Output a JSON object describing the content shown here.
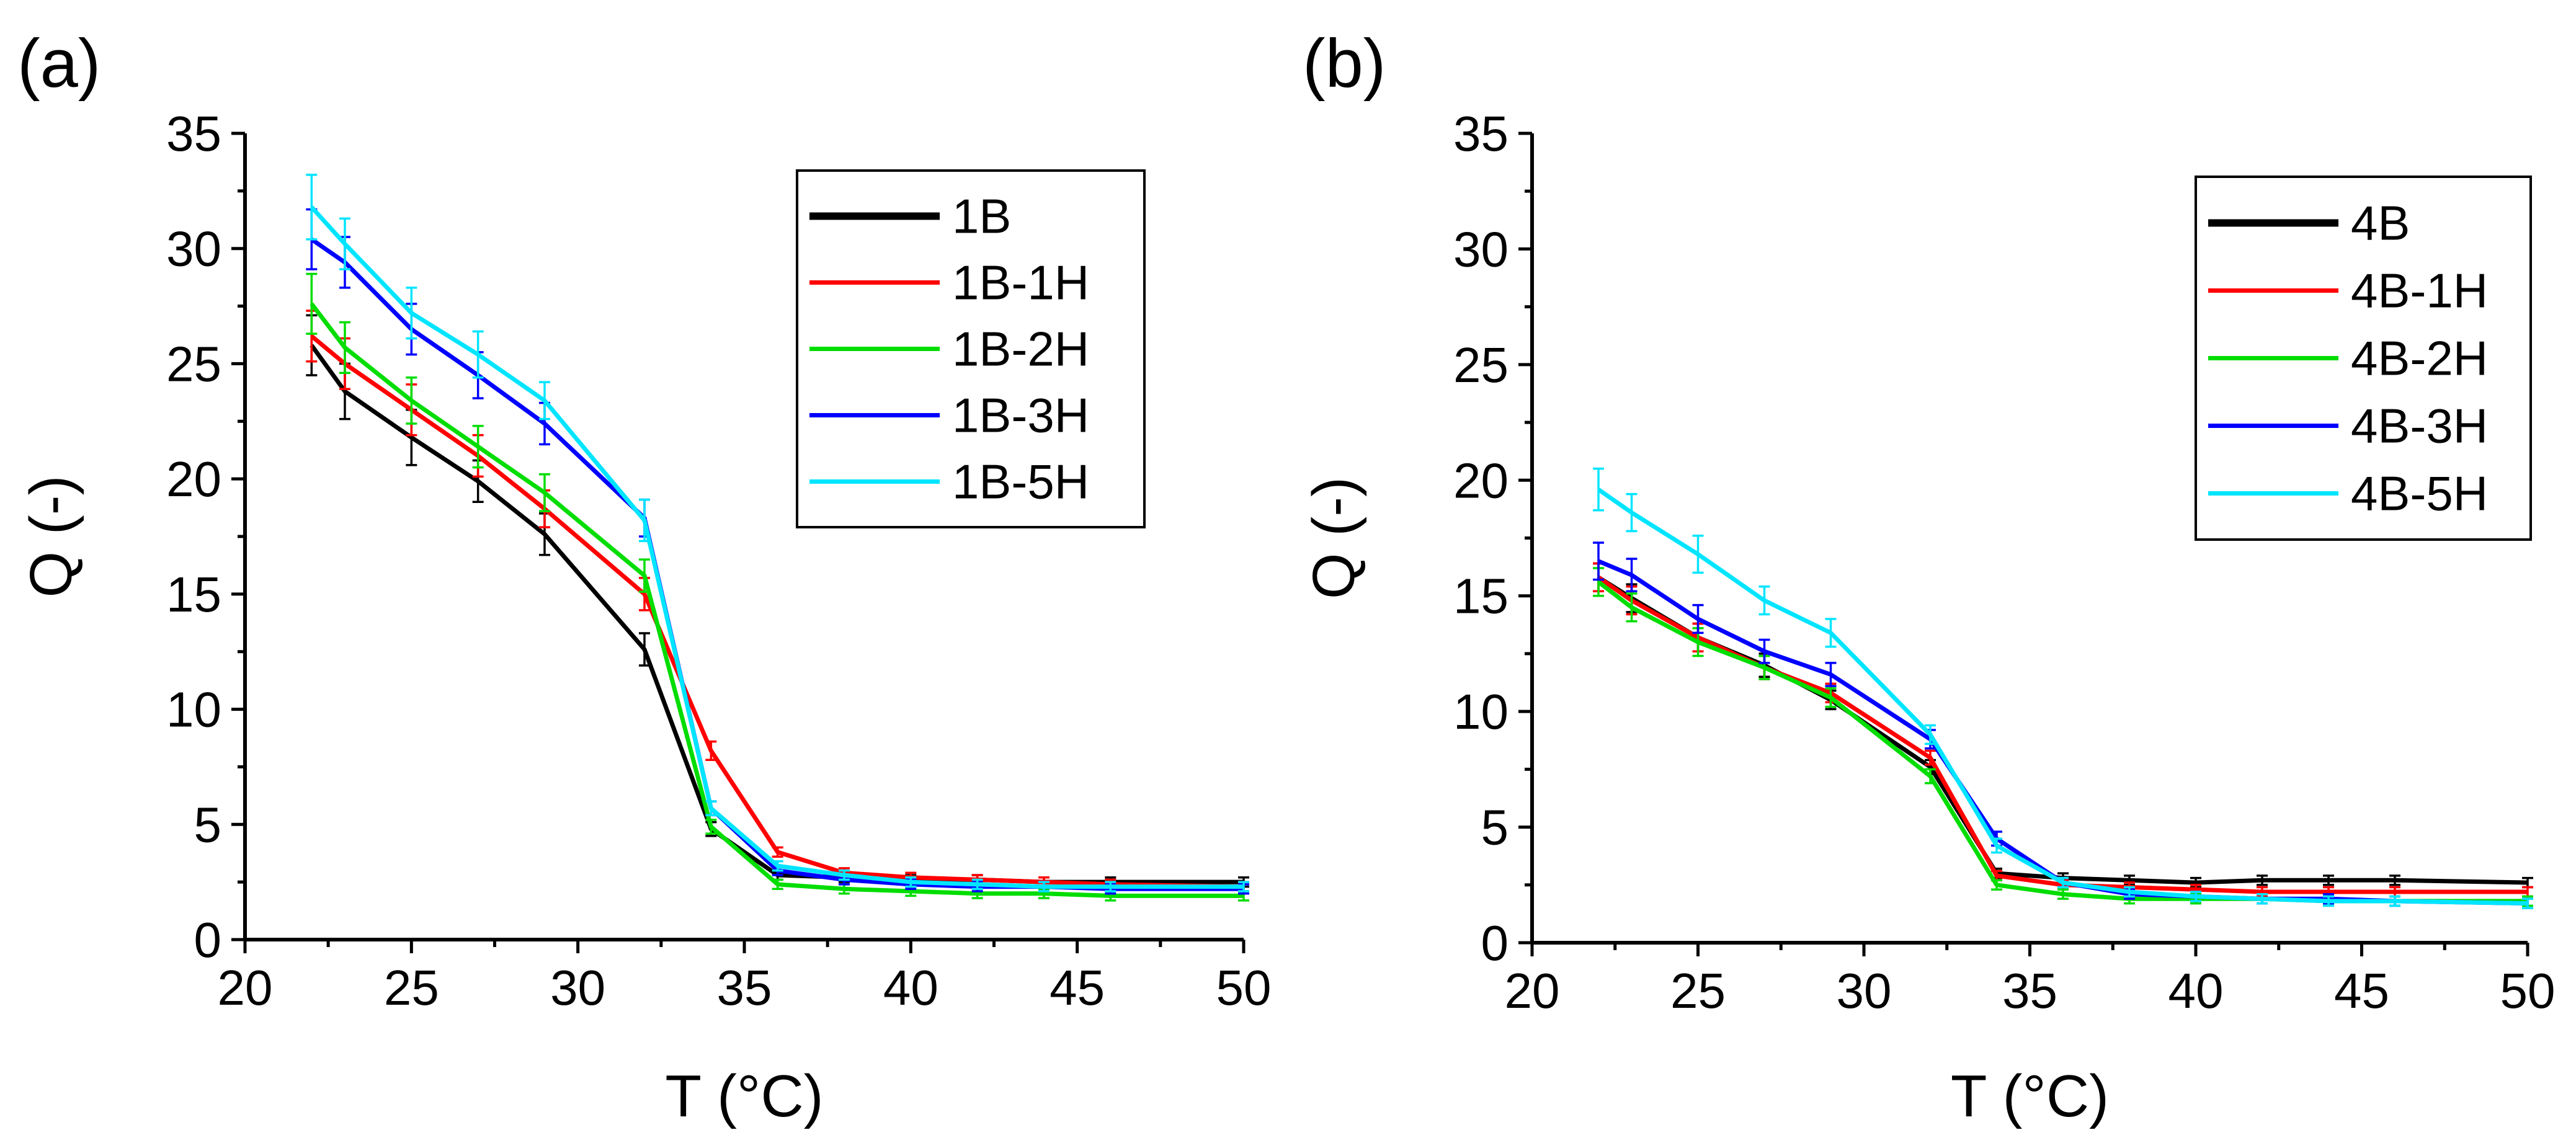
{
  "chart_data": [
    {
      "panel_label": "(a)",
      "type": "line",
      "xlabel": "T (°C)",
      "ylabel": "Q (-)",
      "xlim": [
        20,
        50
      ],
      "ylim": [
        0,
        35
      ],
      "xticks": [
        20,
        25,
        30,
        35,
        40,
        45,
        50
      ],
      "yticks": [
        0,
        5,
        10,
        15,
        20,
        25,
        30,
        35
      ],
      "legend_position": "top-right",
      "x": [
        22,
        23,
        25,
        27,
        29,
        32,
        34,
        36,
        38,
        40,
        42,
        44,
        46,
        50
      ],
      "series": [
        {
          "name": "1B",
          "color": "#000000",
          "values": [
            25.8,
            23.8,
            21.8,
            19.9,
            17.6,
            12.6,
            4.8,
            2.8,
            2.7,
            2.6,
            2.6,
            2.5,
            2.5,
            2.5
          ],
          "errors": [
            1.3,
            1.2,
            1.2,
            0.9,
            0.9,
            0.7,
            0.3,
            0.2,
            0.2,
            0.2,
            0.2,
            0.2,
            0.2,
            0.2
          ]
        },
        {
          "name": "1B-1H",
          "color": "#ff0000",
          "values": [
            26.2,
            25.0,
            23.0,
            21.0,
            18.7,
            15.0,
            8.2,
            3.8,
            2.9,
            2.7,
            2.6,
            2.5,
            2.4,
            2.3
          ],
          "errors": [
            1.1,
            1.1,
            1.1,
            0.9,
            0.8,
            0.7,
            0.4,
            0.2,
            0.2,
            0.2,
            0.2,
            0.2,
            0.2,
            0.2
          ]
        },
        {
          "name": "1B-2H",
          "color": "#00dd00",
          "values": [
            27.6,
            25.7,
            23.4,
            21.4,
            19.4,
            15.8,
            4.9,
            2.4,
            2.2,
            2.1,
            2.0,
            2.0,
            1.9,
            1.9
          ],
          "errors": [
            1.3,
            1.1,
            1.0,
            0.9,
            0.8,
            0.7,
            0.3,
            0.2,
            0.2,
            0.2,
            0.2,
            0.2,
            0.2,
            0.2
          ]
        },
        {
          "name": "1B-3H",
          "color": "#0000ff",
          "values": [
            30.4,
            29.4,
            26.5,
            24.5,
            22.4,
            18.3,
            5.7,
            3.0,
            2.6,
            2.4,
            2.3,
            2.3,
            2.2,
            2.2
          ],
          "errors": [
            1.3,
            1.1,
            1.1,
            1.0,
            0.9,
            0.8,
            0.3,
            0.2,
            0.2,
            0.2,
            0.2,
            0.2,
            0.2,
            0.2
          ]
        },
        {
          "name": "1B-5H",
          "color": "#00e5ff",
          "values": [
            31.8,
            30.2,
            27.2,
            25.4,
            23.4,
            18.2,
            5.7,
            3.2,
            2.8,
            2.5,
            2.4,
            2.3,
            2.3,
            2.3
          ],
          "errors": [
            1.4,
            1.1,
            1.1,
            1.0,
            0.8,
            0.9,
            0.3,
            0.2,
            0.2,
            0.2,
            0.2,
            0.2,
            0.2,
            0.2
          ]
        }
      ]
    },
    {
      "panel_label": "(b)",
      "type": "line",
      "xlabel": "T (°C)",
      "ylabel": "Q (-)",
      "xlim": [
        20,
        50
      ],
      "ylim": [
        0,
        35
      ],
      "xticks": [
        20,
        25,
        30,
        35,
        40,
        45,
        50
      ],
      "yticks": [
        0,
        5,
        10,
        15,
        20,
        25,
        30,
        35
      ],
      "legend_position": "top-right",
      "x": [
        22,
        23,
        25,
        27,
        29,
        32,
        34,
        36,
        38,
        40,
        42,
        44,
        46,
        50
      ],
      "series": [
        {
          "name": "4B",
          "color": "#000000",
          "values": [
            15.8,
            14.9,
            13.2,
            12.0,
            10.5,
            7.6,
            3.0,
            2.8,
            2.7,
            2.6,
            2.7,
            2.7,
            2.7,
            2.6
          ],
          "errors": [
            0.6,
            0.6,
            0.6,
            0.5,
            0.4,
            0.3,
            0.2,
            0.2,
            0.2,
            0.2,
            0.2,
            0.2,
            0.2,
            0.2
          ]
        },
        {
          "name": "4B-1H",
          "color": "#ff0000",
          "values": [
            15.8,
            14.8,
            13.2,
            11.9,
            10.8,
            8.0,
            2.9,
            2.5,
            2.4,
            2.3,
            2.2,
            2.2,
            2.2,
            2.2
          ],
          "errors": [
            0.6,
            0.6,
            0.6,
            0.5,
            0.4,
            0.3,
            0.2,
            0.2,
            0.2,
            0.2,
            0.2,
            0.2,
            0.2,
            0.2
          ]
        },
        {
          "name": "4B-2H",
          "color": "#00dd00",
          "values": [
            15.6,
            14.5,
            13.0,
            11.9,
            10.6,
            7.2,
            2.5,
            2.1,
            1.9,
            1.9,
            1.9,
            1.8,
            1.8,
            1.8
          ],
          "errors": [
            0.6,
            0.6,
            0.6,
            0.5,
            0.4,
            0.3,
            0.2,
            0.2,
            0.2,
            0.2,
            0.2,
            0.2,
            0.2,
            0.2
          ]
        },
        {
          "name": "4B-3H",
          "color": "#0000ff",
          "values": [
            16.5,
            15.9,
            14.0,
            12.6,
            11.6,
            8.8,
            4.5,
            2.6,
            2.1,
            2.0,
            1.9,
            1.9,
            1.8,
            1.7
          ],
          "errors": [
            0.8,
            0.7,
            0.6,
            0.5,
            0.5,
            0.4,
            0.3,
            0.2,
            0.2,
            0.2,
            0.2,
            0.2,
            0.2,
            0.2
          ]
        },
        {
          "name": "4B-5H",
          "color": "#00e5ff",
          "values": [
            19.6,
            18.6,
            16.8,
            14.8,
            13.4,
            9.0,
            4.2,
            2.6,
            2.2,
            2.0,
            1.9,
            1.8,
            1.8,
            1.7
          ],
          "errors": [
            0.9,
            0.8,
            0.8,
            0.6,
            0.6,
            0.4,
            0.3,
            0.2,
            0.2,
            0.2,
            0.2,
            0.2,
            0.2,
            0.2
          ]
        }
      ]
    }
  ]
}
